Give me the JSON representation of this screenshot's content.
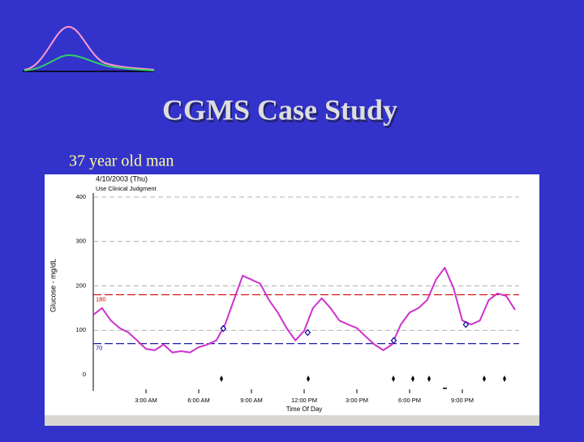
{
  "title": "CGMS Case Study",
  "subtitle": "37 year old man",
  "chart_data": {
    "type": "line",
    "title": "4/10/2003 (Thu)",
    "subtitle": "Use Clinical Judgment",
    "y_label": "Glucose - mg/dL",
    "x_label": "Time Of Day",
    "xlim": [
      0,
      24
    ],
    "xticks": [
      {
        "value": 3,
        "label": "3:00 AM"
      },
      {
        "value": 6,
        "label": "6:00 AM"
      },
      {
        "value": 9,
        "label": "9:00 AM"
      },
      {
        "value": 12,
        "label": "12:00 PM"
      },
      {
        "value": 15,
        "label": "3:00 PM"
      },
      {
        "value": 18,
        "label": "6:00 PM"
      },
      {
        "value": 21,
        "label": "9:00 PM"
      }
    ],
    "ylim": [
      0,
      400
    ],
    "yticks": [
      0,
      100,
      200,
      300,
      400
    ],
    "grid": true,
    "thresholds": [
      {
        "value": 180,
        "color": "#cc0000"
      },
      {
        "value": 70,
        "color": "#000099"
      }
    ],
    "series": [
      {
        "color": "#cc33cc",
        "x": [
          0,
          0.5,
          1,
          1.5,
          2,
          2.5,
          3,
          3.5,
          4,
          4.5,
          5,
          5.5,
          6,
          6.5,
          7,
          7.5,
          8,
          8.5,
          9,
          9.5,
          10,
          10.5,
          11,
          11.5,
          12,
          12.5,
          13,
          13.5,
          14,
          14.5,
          15,
          15.5,
          16,
          16.5,
          17,
          17.5,
          18,
          18.5,
          19,
          19.5,
          20,
          20.5,
          21,
          21.5,
          22,
          22.5,
          23,
          23.5,
          24
        ],
        "values": [
          135,
          150,
          122,
          105,
          95,
          77,
          58,
          55,
          68,
          50,
          53,
          50,
          62,
          68,
          77,
          113,
          168,
          223,
          214,
          205,
          168,
          140,
          105,
          77,
          99,
          150,
          172,
          150,
          122,
          113,
          105,
          86,
          68,
          55,
          68,
          113,
          140,
          150,
          168,
          214,
          241,
          195,
          122,
          113,
          122,
          168,
          183,
          177,
          146
        ]
      },
      {
        "color": "#000099",
        "marker": "diamond",
        "x": [
          7.4,
          12.2,
          17.1,
          21.2
        ],
        "values": [
          104,
          95,
          77,
          113
        ]
      }
    ]
  }
}
